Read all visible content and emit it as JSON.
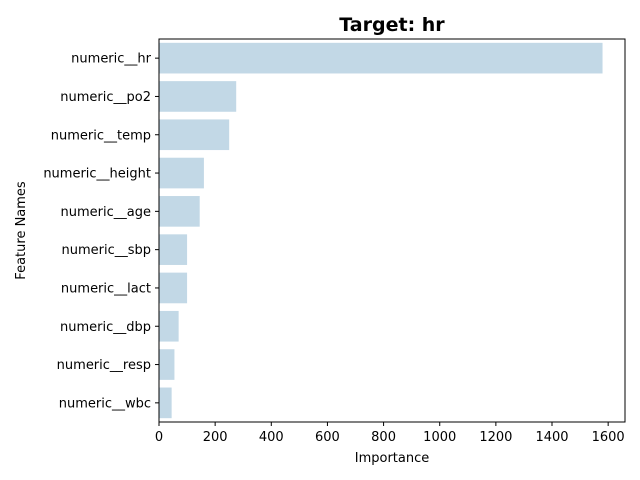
{
  "chart_data": {
    "type": "bar",
    "orientation": "horizontal",
    "title": "Target: hr",
    "xlabel": "Importance",
    "ylabel": "Feature Names",
    "xlim": [
      0,
      1660
    ],
    "xticks": [
      0,
      200,
      400,
      600,
      800,
      1000,
      1200,
      1400,
      1600
    ],
    "bar_color": "#c2d8e6",
    "grid": false,
    "categories": [
      "numeric__hr",
      "numeric__po2",
      "numeric__temp",
      "numeric__height",
      "numeric__age",
      "numeric__sbp",
      "numeric__lact",
      "numeric__dbp",
      "numeric__resp",
      "numeric__wbc"
    ],
    "values": [
      1580,
      275,
      250,
      160,
      145,
      100,
      100,
      70,
      55,
      45
    ]
  }
}
